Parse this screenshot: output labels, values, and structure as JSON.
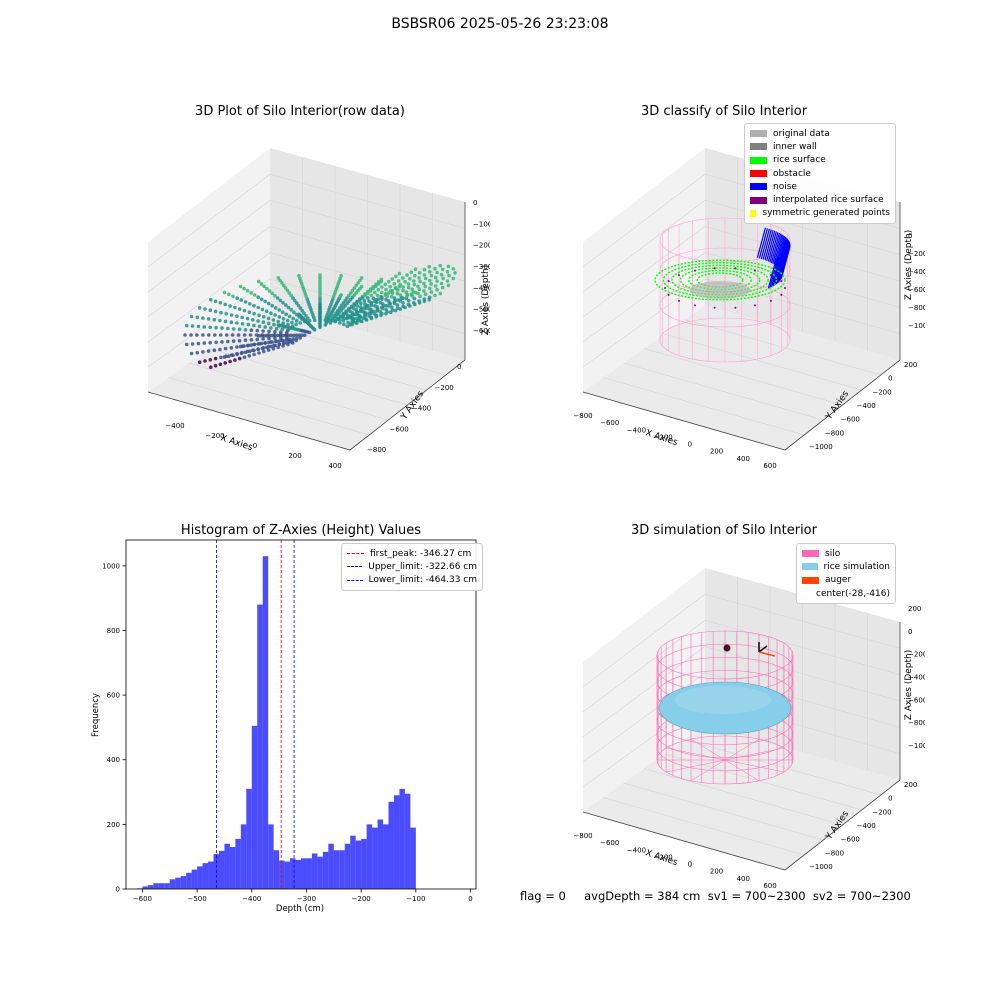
{
  "figure": {
    "suptitle": "BSBSR06 2025-05-26 23:23:08",
    "status_text": "flag = 0     avgDepth = 384 cm  sv1 = 700~2300  sv2 = 700~2300"
  },
  "panels": {
    "raw": {
      "title": "3D Plot of Silo Interior(row data)",
      "xlabel": "X Axies",
      "ylabel": "Y Axies",
      "zlabel": "Z Axies (Depth)",
      "xticks": [
        "−400",
        "−200",
        "0",
        "200",
        "400"
      ],
      "yticks": [
        "0",
        "−200",
        "−400",
        "−600",
        "−800"
      ],
      "zticks": [
        "0",
        "−100",
        "−200",
        "−300",
        "−400",
        "−500",
        "−600"
      ]
    },
    "classify": {
      "title": "3D classify of Silo Interior",
      "xlabel": "X Axies",
      "ylabel": "Y Axies",
      "zlabel": "Z Axies (Depth)",
      "xticks": [
        "−800",
        "−600",
        "−400",
        "−200",
        "0",
        "200",
        "400",
        "600"
      ],
      "yticks": [
        "200",
        "0",
        "−200",
        "−400",
        "−600",
        "−800",
        "−1000"
      ],
      "zticks": [
        "0",
        "−200",
        "−400",
        "−600",
        "−800",
        "−1000"
      ],
      "legend": [
        {
          "label": "original data",
          "color": "#b0b0b0"
        },
        {
          "label": "inner wall",
          "color": "#808080"
        },
        {
          "label": "rice surface",
          "color": "#00ff00"
        },
        {
          "label": "obstacle",
          "color": "#ff0000"
        },
        {
          "label": "noise",
          "color": "#0000ff"
        },
        {
          "label": "interpolated rice surface",
          "color": "#800080"
        },
        {
          "label": "symmetric generated points",
          "color": "#ffff00"
        }
      ]
    },
    "simulation": {
      "title": "3D simulation of Silo Interior",
      "xlabel": "X Axies",
      "ylabel": "Y Axies",
      "zlabel": "Z Axies (Depth)",
      "xticks": [
        "−800",
        "−600",
        "−400",
        "−200",
        "0",
        "200",
        "400",
        "600"
      ],
      "yticks": [
        "200",
        "0",
        "−200",
        "−400",
        "−600",
        "−800",
        "−1000"
      ],
      "zticks": [
        "200",
        "0",
        "−200",
        "−400",
        "−600",
        "−800",
        "−1000"
      ],
      "legend": [
        {
          "label": "silo",
          "color": "#ff69b4"
        },
        {
          "label": "rice simulation",
          "color": "#87ceeb"
        },
        {
          "label": "auger",
          "color": "#ff4500"
        },
        {
          "label": "center(-28,-416)",
          "color": "#ffffff"
        }
      ]
    }
  },
  "chart_data": [
    {
      "type": "bar",
      "title": "Histogram of Z-Axies (Height) Values",
      "xlabel": "Depth (cm)",
      "ylabel": "Frequency",
      "xlim": [
        -630,
        10
      ],
      "ylim": [
        0,
        1080
      ],
      "xticks": [
        -600,
        -500,
        -400,
        -300,
        -200,
        -100,
        0
      ],
      "yticks": [
        0,
        200,
        400,
        600,
        800,
        1000
      ],
      "bar_color": "#0000ff",
      "bin_start": -610,
      "bin_width": 10,
      "values": [
        2,
        8,
        12,
        18,
        18,
        18,
        30,
        35,
        40,
        50,
        60,
        70,
        80,
        85,
        108,
        118,
        140,
        130,
        155,
        200,
        310,
        505,
        880,
        1030,
        200,
        120,
        88,
        85,
        95,
        90,
        95,
        95,
        110,
        100,
        115,
        140,
        120,
        120,
        140,
        165,
        150,
        155,
        200,
        190,
        215,
        200,
        270,
        290,
        310,
        295,
        190
      ],
      "lines": [
        {
          "label": "first_peak: -346.27 cm",
          "x": -346.27,
          "color": "#ff0000"
        },
        {
          "label": "Upper_limit: -322.66 cm",
          "x": -322.66,
          "color": "#0000ff"
        },
        {
          "label": "Lower_limit: -464.33 cm",
          "x": -464.33,
          "color": "#0000ff"
        }
      ],
      "legend_position": "upper right"
    }
  ]
}
